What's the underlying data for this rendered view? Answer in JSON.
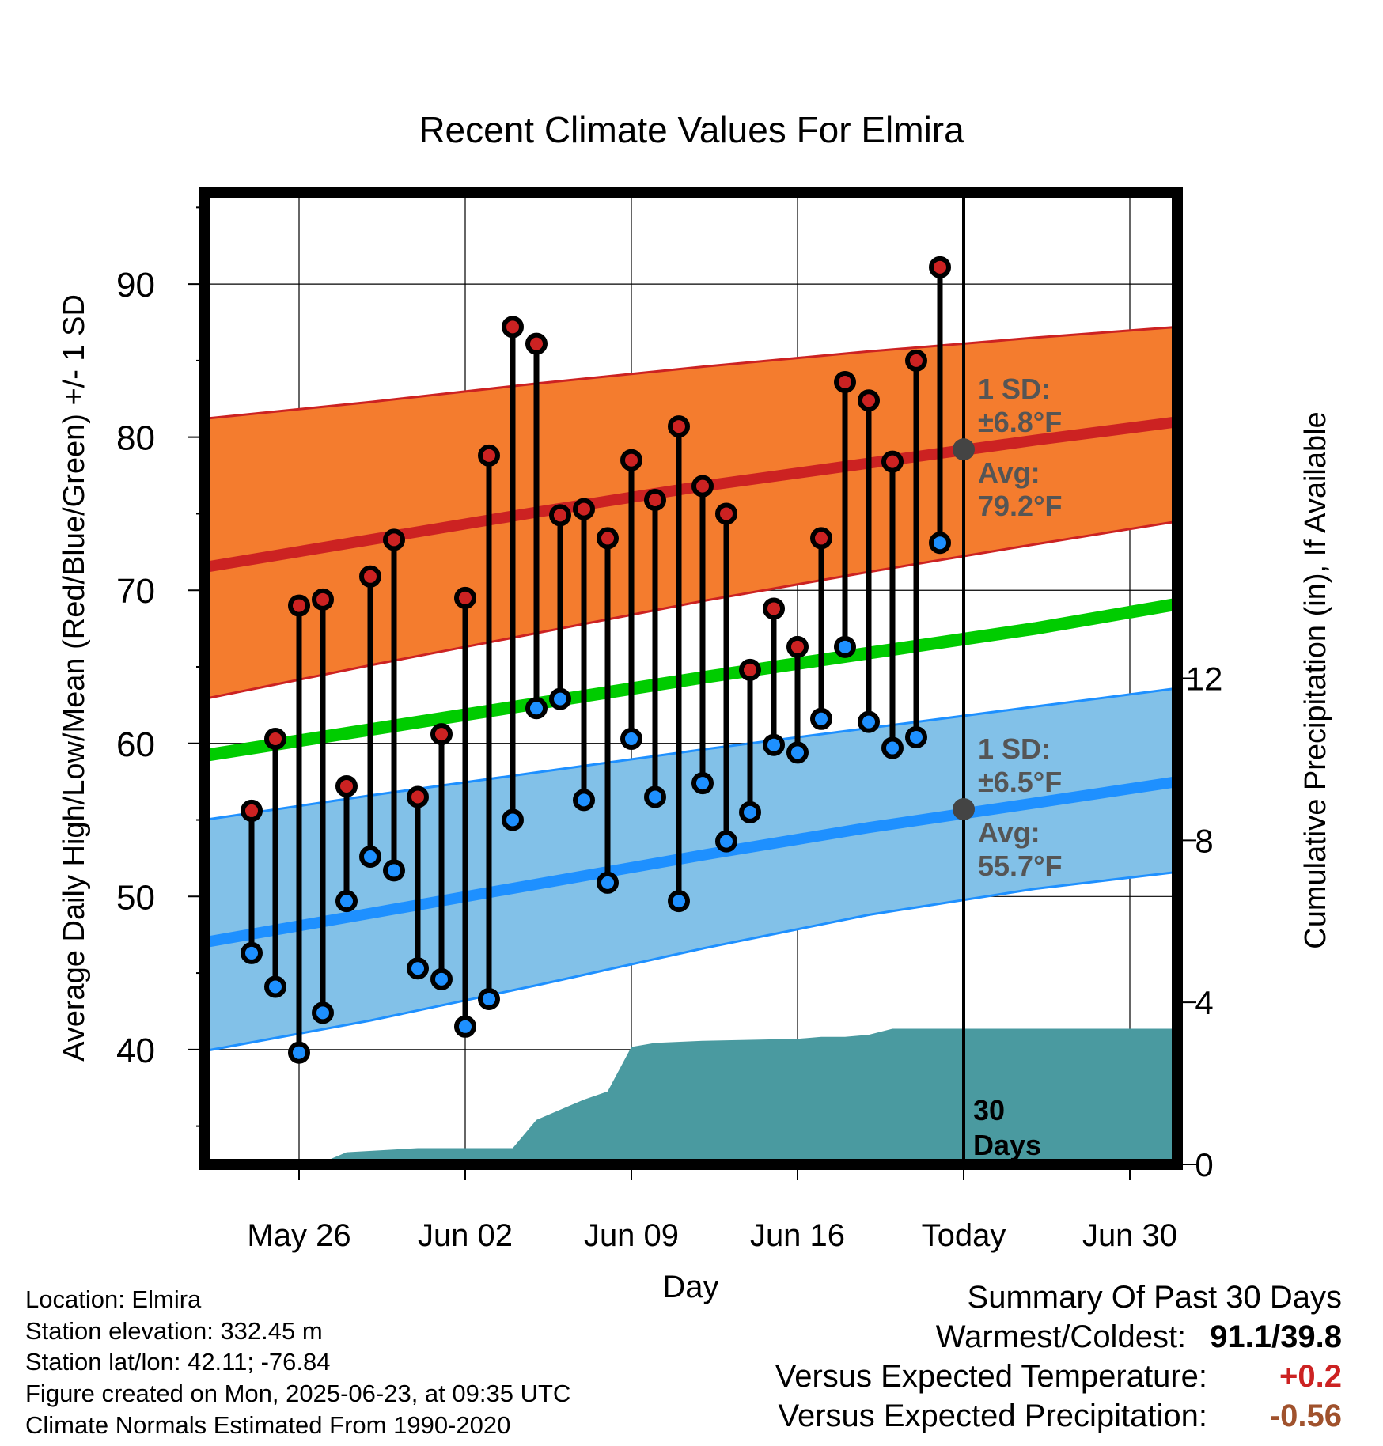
{
  "chart_data": {
    "type": "line",
    "title": "Recent Climate Values For Elmira",
    "xlabel": "Day",
    "ylabel": "Average Daily High/Low/Mean (Red/Blue/Green) +/- 1 SD",
    "y2label": "Cumulative Precipitation (in), If Available",
    "xlim": [
      "2025-05-22",
      "2025-07-02"
    ],
    "ylim": [
      32.5,
      96
    ],
    "y2lim": [
      0,
      24
    ],
    "x_ticks": [
      {
        "date": "2025-05-26",
        "label": "May 26"
      },
      {
        "date": "2025-06-02",
        "label": "Jun 02"
      },
      {
        "date": "2025-06-09",
        "label": "Jun 09"
      },
      {
        "date": "2025-06-16",
        "label": "Jun 16"
      },
      {
        "date": "2025-06-23",
        "label": "Today"
      },
      {
        "date": "2025-06-30",
        "label": "Jun 30"
      }
    ],
    "y_ticks": [
      40,
      50,
      60,
      70,
      80,
      90
    ],
    "y2_ticks": [
      0,
      4,
      8,
      12
    ],
    "grid": true,
    "today": "2025-06-23",
    "window_label": [
      "30",
      "Days"
    ],
    "observed": {
      "dates": [
        "2025-05-24",
        "2025-05-25",
        "2025-05-26",
        "2025-05-27",
        "2025-05-28",
        "2025-05-29",
        "2025-05-30",
        "2025-05-31",
        "2025-06-01",
        "2025-06-02",
        "2025-06-03",
        "2025-06-04",
        "2025-06-05",
        "2025-06-06",
        "2025-06-07",
        "2025-06-08",
        "2025-06-09",
        "2025-06-10",
        "2025-06-11",
        "2025-06-12",
        "2025-06-13",
        "2025-06-14",
        "2025-06-15",
        "2025-06-16",
        "2025-06-17",
        "2025-06-18",
        "2025-06-19",
        "2025-06-20",
        "2025-06-21",
        "2025-06-22"
      ],
      "highs": [
        55.6,
        60.3,
        69.0,
        69.4,
        57.2,
        70.9,
        73.3,
        56.5,
        60.6,
        69.5,
        78.8,
        87.2,
        86.1,
        74.9,
        75.3,
        73.4,
        78.5,
        75.9,
        80.7,
        76.8,
        75.0,
        64.8,
        68.8,
        66.3,
        73.4,
        83.6,
        82.4,
        78.4,
        85.0,
        91.1
      ],
      "lows": [
        46.3,
        44.1,
        39.8,
        42.4,
        49.7,
        52.6,
        51.7,
        45.3,
        44.6,
        41.5,
        43.3,
        55.0,
        62.3,
        62.9,
        56.3,
        50.9,
        60.3,
        56.5,
        49.7,
        57.4,
        53.6,
        55.5,
        59.9,
        59.4,
        61.6,
        66.3,
        61.4,
        59.7,
        60.4,
        73.1
      ]
    },
    "normals": {
      "dates": [
        "2025-05-22",
        "2025-05-29",
        "2025-06-05",
        "2025-06-12",
        "2025-06-19",
        "2025-06-26",
        "2025-07-02"
      ],
      "high_mean": [
        71.5,
        73.3,
        75.1,
        76.8,
        78.3,
        79.8,
        81.0
      ],
      "high_sd_upper": [
        81.2,
        82.3,
        83.5,
        84.6,
        85.6,
        86.5,
        87.2
      ],
      "high_sd_lower": [
        62.9,
        65.1,
        67.2,
        69.3,
        71.2,
        73.0,
        74.5
      ],
      "daily_mean": [
        59.2,
        60.9,
        62.6,
        64.3,
        65.9,
        67.5,
        69.1
      ],
      "low_mean": [
        47.0,
        48.9,
        50.8,
        52.7,
        54.5,
        56.1,
        57.5
      ],
      "low_sd_upper": [
        55.0,
        56.6,
        58.1,
        59.6,
        61.0,
        62.4,
        63.6
      ],
      "low_sd_lower": [
        39.9,
        41.9,
        44.2,
        46.6,
        48.8,
        50.5,
        51.6
      ]
    },
    "precipitation": {
      "dates": [
        "2025-05-22",
        "2025-05-23",
        "2025-05-26",
        "2025-05-27",
        "2025-05-28",
        "2025-05-31",
        "2025-06-04",
        "2025-06-05",
        "2025-06-07",
        "2025-06-08",
        "2025-06-09",
        "2025-06-10",
        "2025-06-12",
        "2025-06-16",
        "2025-06-17",
        "2025-06-18",
        "2025-06-19",
        "2025-06-20",
        "2025-07-02"
      ],
      "cumulative_in": [
        0,
        0,
        0,
        0.05,
        0.3,
        0.4,
        0.4,
        1.1,
        1.6,
        1.8,
        2.9,
        3.0,
        3.05,
        3.1,
        3.15,
        3.15,
        3.2,
        3.35,
        3.35
      ]
    },
    "annotations": {
      "high_sd": [
        "1 SD:",
        "±6.8°F"
      ],
      "high_avg": [
        "Avg:",
        "79.2°F"
      ],
      "low_sd": [
        "1 SD:",
        "±6.5°F"
      ],
      "low_avg": [
        "Avg:",
        "55.7°F"
      ],
      "today_high_avg": 79.2,
      "today_low_avg": 55.7
    },
    "colors": {
      "high": "#cc2222",
      "high_band": "#f47c2e",
      "low": "#1e90ff",
      "low_band": "#82c1e8",
      "mean": "#00cc00",
      "precip": "#4a9aa0",
      "annotation": "#555555",
      "today_marker": "#444444"
    }
  },
  "location": {
    "location_line": "Location: Elmira",
    "elevation_line": "Station elevation: 332.45 m",
    "latlon_line": "Station lat/lon: 42.11; -76.84",
    "created_line": "Figure created on Mon, 2025-06-23, at 09:35 UTC",
    "normals_line": "Climate Normals Estimated From 1990-2020"
  },
  "summary": {
    "title": "Summary Of Past 30 Days",
    "warmest_label": "Warmest/Coldest:",
    "warmest_value": "91.1/39.8",
    "temp_label": "Versus Expected Temperature:",
    "temp_value": "+0.2",
    "temp_color": "#cc2222",
    "precip_label": "Versus Expected Precipitation:",
    "precip_value": "-0.56",
    "precip_color": "#a0522d"
  }
}
